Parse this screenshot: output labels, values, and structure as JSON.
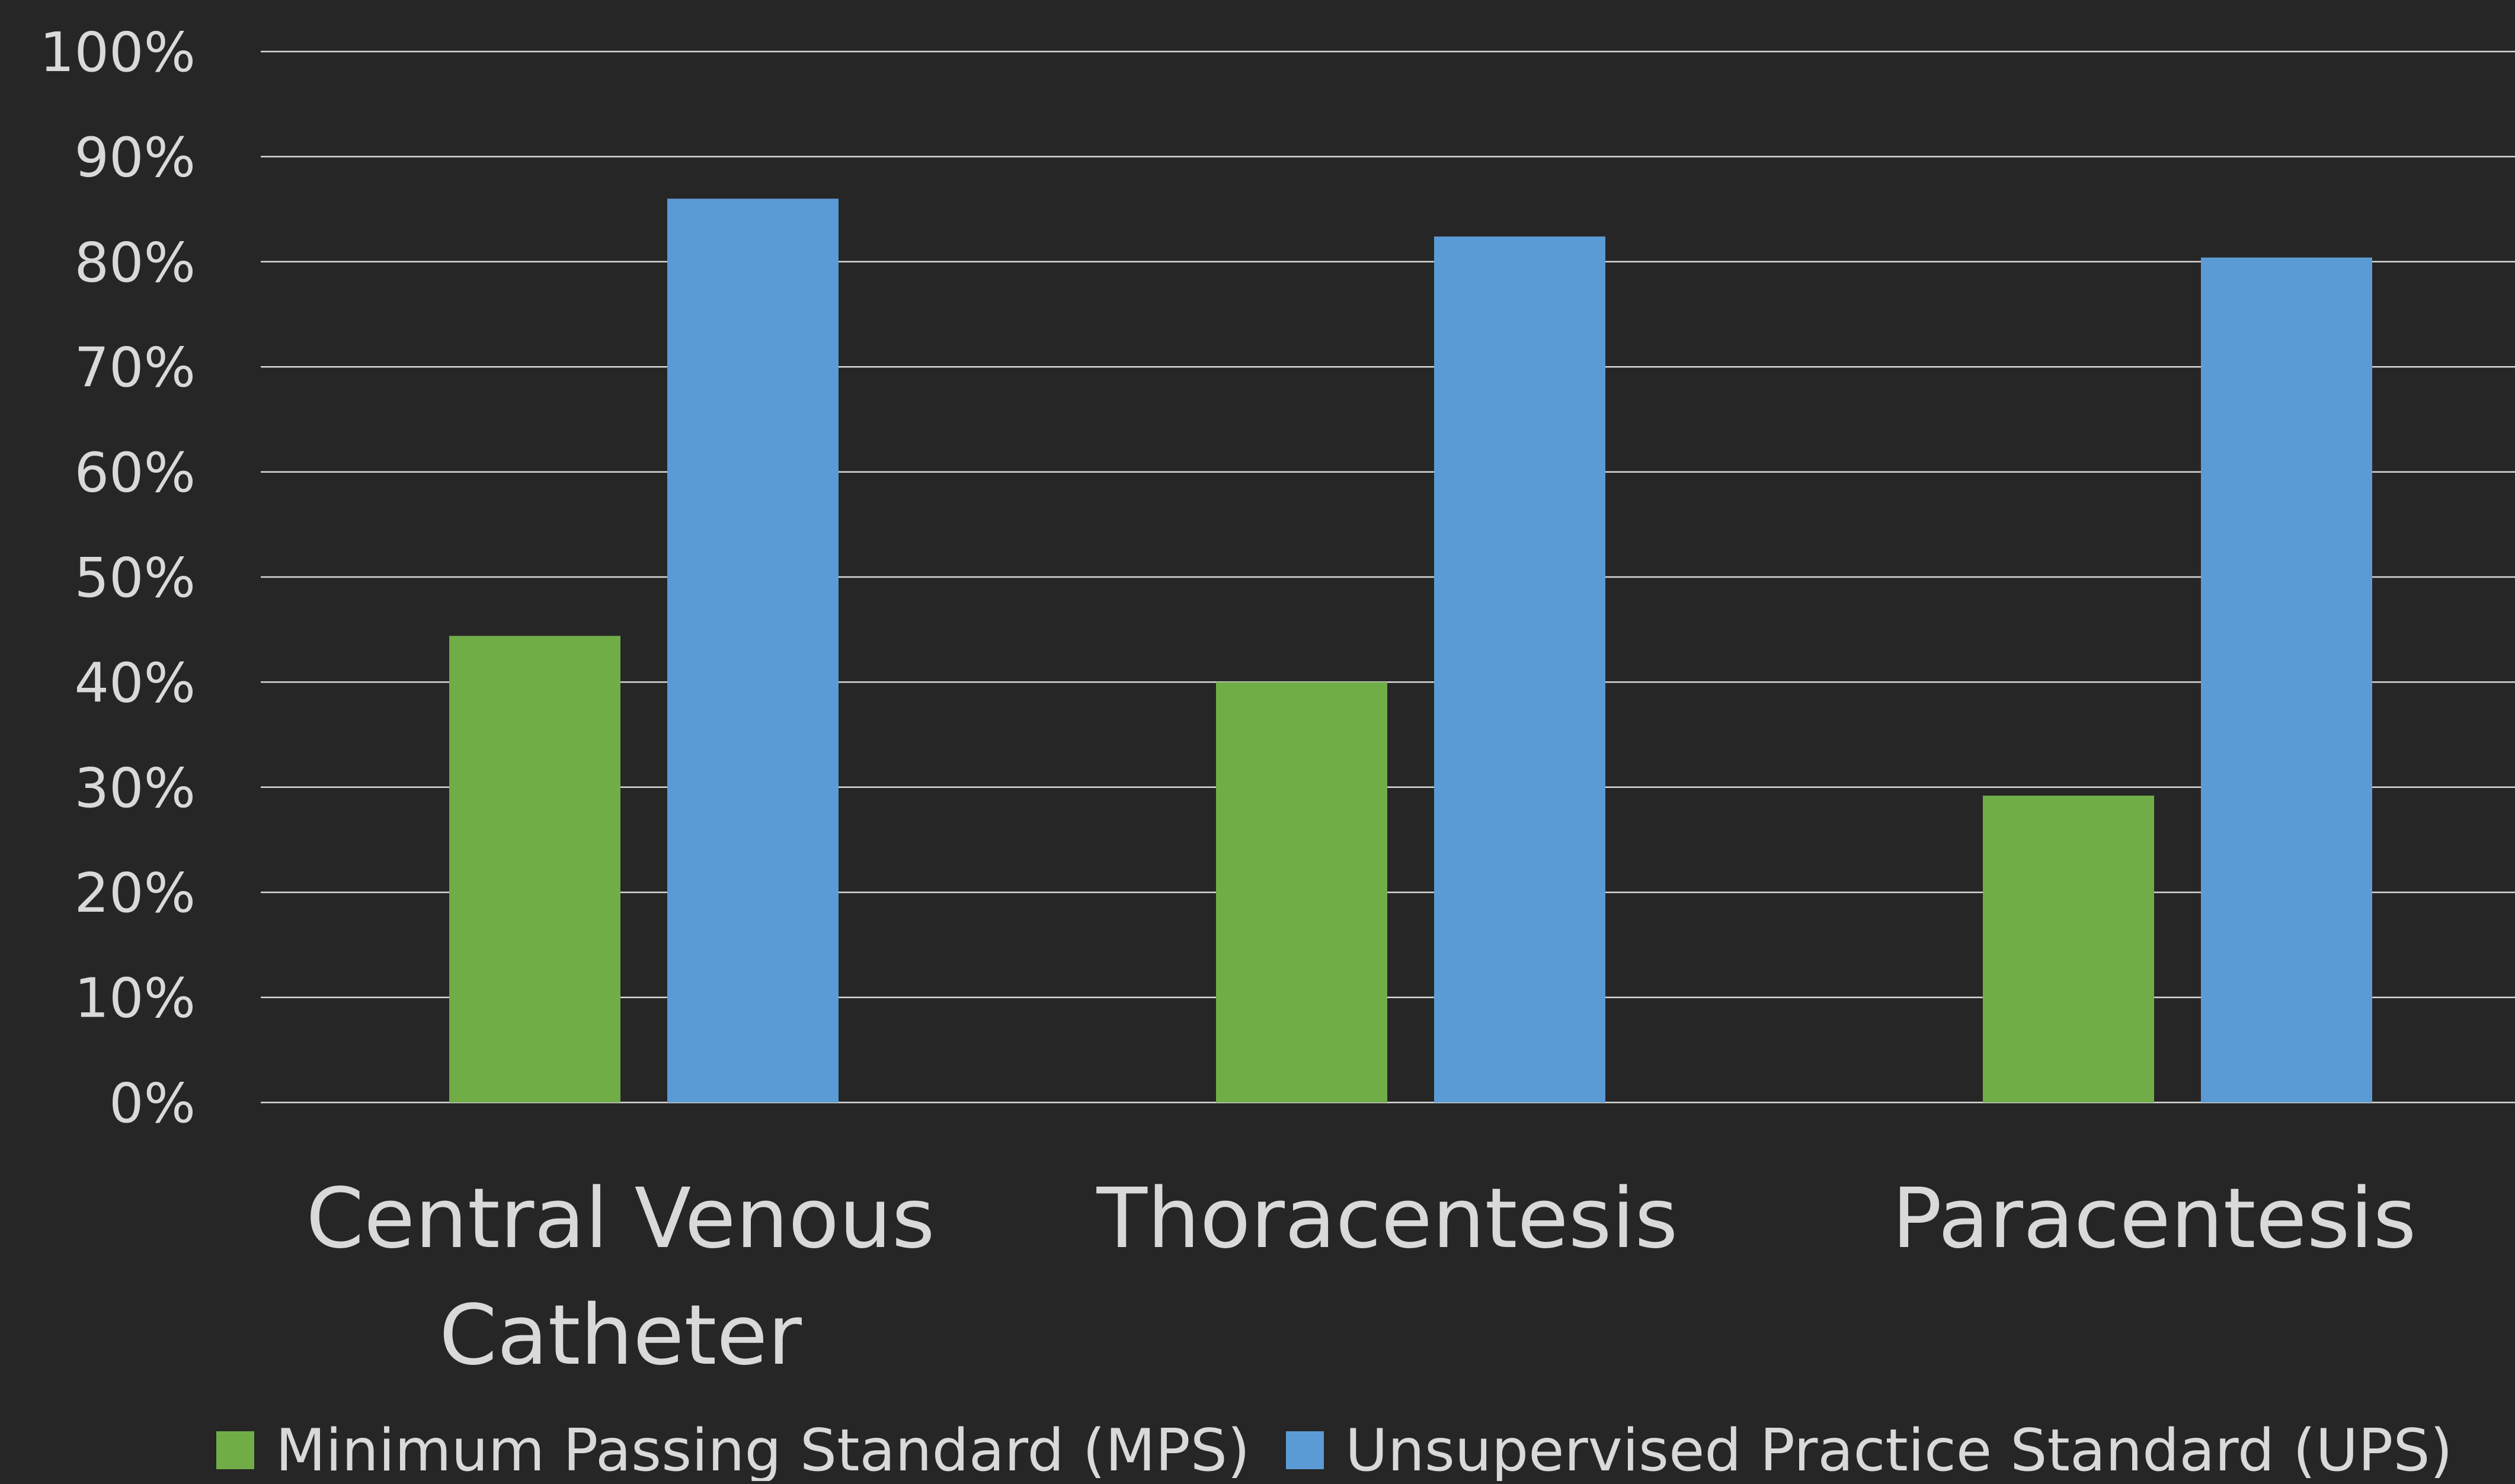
{
  "chart_data": {
    "type": "bar",
    "categories": [
      [
        "Central Venous",
        "Catheter"
      ],
      [
        "Thoracentesis"
      ],
      [
        "Paracentesis"
      ]
    ],
    "series": [
      {
        "name": "Minimum Passing Standard (MPS)",
        "color": "#70AD47",
        "values": [
          44.4,
          40.0,
          29.2
        ]
      },
      {
        "name": "Unsupervised Practice Standard (UPS)",
        "color": "#5B9BD5",
        "values": [
          86.0,
          82.4,
          80.4
        ]
      }
    ],
    "ylim": [
      0,
      100
    ],
    "yticks": [
      0,
      10,
      20,
      30,
      40,
      50,
      60,
      70,
      80,
      90,
      100
    ],
    "ytick_labels": [
      "0%",
      "10%",
      "20%",
      "30%",
      "40%",
      "50%",
      "60%",
      "70%",
      "80%",
      "90%",
      "100%"
    ],
    "grid": true,
    "legend_position": "bottom",
    "background": "#262626",
    "text_color": "#D9D9D9",
    "grid_color": "#D9D9D9"
  }
}
